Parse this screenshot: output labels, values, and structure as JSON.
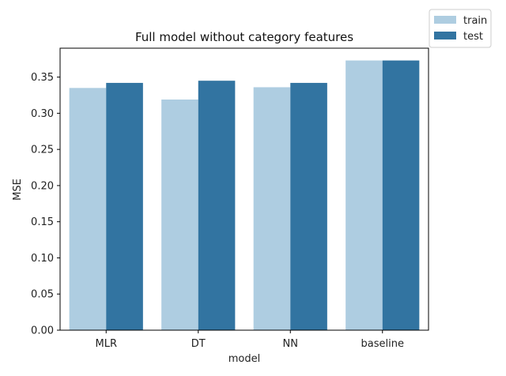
{
  "chart_data": {
    "type": "bar",
    "title": "Full model without category features",
    "xlabel": "model",
    "ylabel": "MSE",
    "categories": [
      "MLR",
      "DT",
      "NN",
      "baseline"
    ],
    "series": [
      {
        "name": "train",
        "values": [
          0.335,
          0.319,
          0.336,
          0.373
        ],
        "color": "#aecde1"
      },
      {
        "name": "test",
        "values": [
          0.342,
          0.345,
          0.342,
          0.373
        ],
        "color": "#3274a1"
      }
    ],
    "ylim": [
      0,
      0.39
    ],
    "yticks": [
      0.0,
      0.05,
      0.1,
      0.15,
      0.2,
      0.25,
      0.3,
      0.35
    ],
    "ytick_labels": [
      "0.00",
      "0.05",
      "0.10",
      "0.15",
      "0.20",
      "0.25",
      "0.30",
      "0.35"
    ],
    "grid": false,
    "legend_position": "outside-top-right"
  }
}
